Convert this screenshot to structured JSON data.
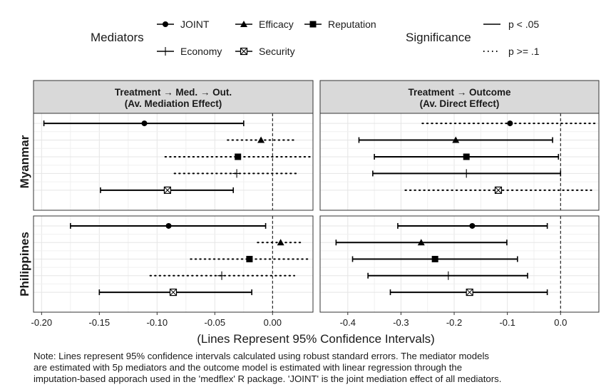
{
  "chart_data": {
    "type": "dot-whisker",
    "legend": {
      "mediators_title": "Mediators",
      "mediators": [
        {
          "label": "JOINT",
          "shape": "circle"
        },
        {
          "label": "Efficacy",
          "shape": "triangle"
        },
        {
          "label": "Reputation",
          "shape": "square"
        },
        {
          "label": "Economy",
          "shape": "plus"
        },
        {
          "label": "Security",
          "shape": "boxcross"
        }
      ],
      "significance_title": "Significance",
      "significance": [
        {
          "label": "p < .05",
          "linetype": "solid"
        },
        {
          "label": "p >= .1",
          "linetype": "dotted"
        }
      ]
    },
    "facet_titles": [
      {
        "line1": "Treatment → Med. → Out.",
        "line2": "(Av. Mediation Effect)"
      },
      {
        "line1": "Treatment → Outcome",
        "line2": "(Av. Direct Effect)"
      }
    ],
    "rows": [
      "Myanmar",
      "Philippines"
    ],
    "xlabel": "(Lines Represent 95% Confidence Intervals)",
    "panels": [
      {
        "col": 0,
        "xlim": [
          -0.207,
          0.035
        ],
        "ticks": [
          -0.2,
          -0.15,
          -0.1,
          -0.05,
          0.0
        ],
        "tick_labels": [
          "-0.20",
          "-0.15",
          "-0.10",
          "-0.05",
          "0.00"
        ],
        "rows": [
          [
            {
              "mediator": "JOINT",
              "est": -0.111,
              "lo": -0.198,
              "hi": -0.025,
              "sig": "solid"
            },
            {
              "mediator": "Efficacy",
              "est": -0.01,
              "lo": -0.039,
              "hi": 0.02,
              "sig": "dotted"
            },
            {
              "mediator": "Reputation",
              "est": -0.03,
              "lo": -0.093,
              "hi": 0.034,
              "sig": "dotted"
            },
            {
              "mediator": "Economy",
              "est": -0.031,
              "lo": -0.085,
              "hi": 0.023,
              "sig": "dotted"
            },
            {
              "mediator": "Security",
              "est": -0.091,
              "lo": -0.149,
              "hi": -0.034,
              "sig": "solid"
            }
          ],
          [
            {
              "mediator": "JOINT",
              "est": -0.09,
              "lo": -0.175,
              "hi": -0.006,
              "sig": "solid"
            },
            {
              "mediator": "Efficacy",
              "est": 0.007,
              "lo": -0.013,
              "hi": 0.027,
              "sig": "dotted"
            },
            {
              "mediator": "Reputation",
              "est": -0.02,
              "lo": -0.071,
              "hi": 0.032,
              "sig": "dotted"
            },
            {
              "mediator": "Economy",
              "est": -0.044,
              "lo": -0.106,
              "hi": 0.019,
              "sig": "dotted"
            },
            {
              "mediator": "Security",
              "est": -0.086,
              "lo": -0.15,
              "hi": -0.018,
              "sig": "solid"
            }
          ]
        ]
      },
      {
        "col": 1,
        "xlim": [
          -0.452,
          0.072
        ],
        "ticks": [
          -0.4,
          -0.3,
          -0.2,
          -0.1,
          0.0
        ],
        "tick_labels": [
          "-0.4",
          "-0.3",
          "-0.2",
          "-0.1",
          "0.0"
        ],
        "rows": [
          [
            {
              "mediator": "JOINT",
              "est": -0.095,
              "lo": -0.26,
              "hi": 0.068,
              "sig": "dotted"
            },
            {
              "mediator": "Efficacy",
              "est": -0.197,
              "lo": -0.379,
              "hi": -0.015,
              "sig": "solid"
            },
            {
              "mediator": "Reputation",
              "est": -0.177,
              "lo": -0.35,
              "hi": -0.004,
              "sig": "solid"
            },
            {
              "mediator": "Economy",
              "est": -0.177,
              "lo": -0.353,
              "hi": 0.0,
              "sig": "solid"
            },
            {
              "mediator": "Security",
              "est": -0.117,
              "lo": -0.292,
              "hi": 0.058,
              "sig": "dotted"
            }
          ],
          [
            {
              "mediator": "JOINT",
              "est": -0.166,
              "lo": -0.306,
              "hi": -0.025,
              "sig": "solid"
            },
            {
              "mediator": "Efficacy",
              "est": -0.262,
              "lo": -0.422,
              "hi": -0.101,
              "sig": "solid"
            },
            {
              "mediator": "Reputation",
              "est": -0.236,
              "lo": -0.391,
              "hi": -0.081,
              "sig": "solid"
            },
            {
              "mediator": "Economy",
              "est": -0.211,
              "lo": -0.362,
              "hi": -0.062,
              "sig": "solid"
            },
            {
              "mediator": "Security",
              "est": -0.171,
              "lo": -0.32,
              "hi": -0.025,
              "sig": "solid"
            }
          ]
        ]
      }
    ],
    "note_lines": [
      "Note: Lines represent 95% confidence intervals calculated using robust standard errors. The mediator models",
      "are estimated with 5p mediators and the outcome model is estimated with linear regression through the",
      "imputation-based apporach used in the 'medflex' R package. 'JOINT' is the joint mediation effect of all mediators."
    ]
  }
}
